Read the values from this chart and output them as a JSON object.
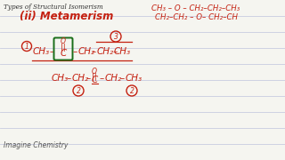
{
  "title": "Types of Structural Isomerism",
  "subtitle": "(ii) Metamerism",
  "bg_color": "#f5f5f0",
  "line_color": "#c8cce0",
  "red_color": "#c42010",
  "green_color": "#1a6e1a",
  "watermark": "Imagine Chemistry",
  "top_right_line1": "CH₃ – O – CH₂–CH₂–CH₃",
  "top_right_line2": "CH₂–CH₂ – O– CH₂–CH",
  "struct1_formula": "CH₃ –  – CH₂ – CH₂– CH₃",
  "struct2_formula": "CH₃ – CH₂ –  – CH₂ – CH₃"
}
